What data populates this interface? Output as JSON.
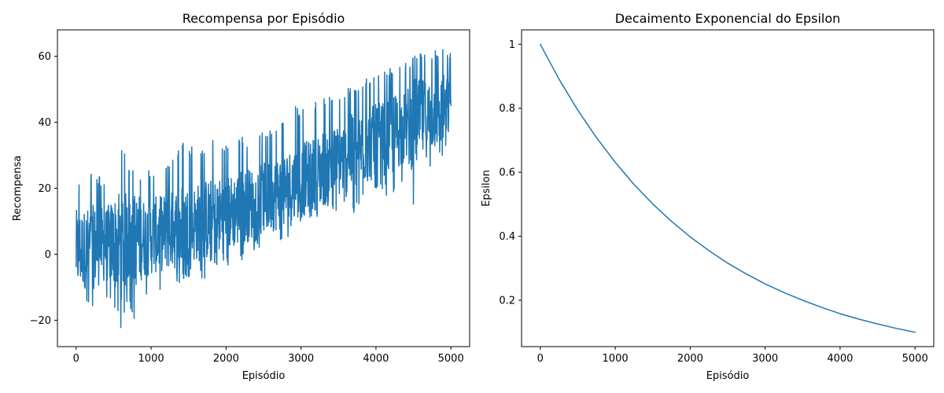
{
  "chart_data": [
    {
      "type": "line",
      "title": "Recompensa por Episódio",
      "xlabel": "Episódio",
      "ylabel": "Recompensa",
      "xlim": [
        -250,
        5250
      ],
      "ylim": [
        -28,
        68
      ],
      "xticks": [
        0,
        1000,
        2000,
        3000,
        4000,
        5000
      ],
      "yticks": [
        -20,
        0,
        20,
        40,
        60
      ],
      "ytick_labels": [
        "−20",
        "0",
        "20",
        "40",
        "60"
      ],
      "grid": false,
      "series": [
        {
          "color": "#1f77b4",
          "x": [
            0,
            100,
            200,
            300,
            400,
            500,
            600,
            700,
            800,
            900,
            1000,
            1100,
            1200,
            1300,
            1400,
            1500,
            1600,
            1700,
            1800,
            1900,
            2000,
            2100,
            2200,
            2300,
            2400,
            2500,
            2600,
            2700,
            2800,
            2900,
            3000,
            3100,
            3200,
            3300,
            3400,
            3500,
            3600,
            3700,
            3800,
            3900,
            4000,
            4100,
            4200,
            4300,
            4400,
            4500,
            4600,
            4700,
            4800,
            4900,
            5000
          ],
          "values": [
            1.0,
            1.5,
            2.0,
            2.5,
            3.0,
            3.5,
            4.0,
            4.2,
            4.5,
            5.0,
            5.5,
            6.0,
            6.8,
            7.5,
            8.0,
            8.8,
            9.5,
            10.0,
            10.8,
            11.5,
            12.2,
            13.0,
            14.0,
            15.0,
            15.8,
            16.5,
            17.5,
            18.5,
            19.5,
            20.8,
            22.0,
            23.5,
            24.5,
            26.0,
            27.0,
            28.2,
            29.5,
            30.5,
            32.0,
            33.0,
            34.0,
            35.0,
            36.2,
            37.2,
            38.5,
            39.5,
            40.8,
            41.5,
            42.5,
            44.0,
            45.0
          ],
          "band_low": [
            -18,
            -15,
            -17,
            -15,
            -14,
            -16,
            -23,
            -15,
            -22,
            -14,
            -12,
            -12,
            -10,
            -10,
            -9,
            -7,
            -6,
            -8,
            -4,
            -5,
            -4,
            -3,
            -2,
            -1,
            2,
            1,
            4,
            3,
            5,
            6,
            8,
            9,
            10,
            10,
            13,
            13,
            15,
            12,
            16,
            17,
            19,
            20,
            14,
            22,
            22,
            13,
            22,
            23,
            28,
            29,
            33
          ],
          "band_high": [
            22,
            23,
            25,
            24,
            22,
            28,
            35,
            26,
            25,
            25,
            26,
            25,
            28,
            29,
            35,
            33,
            32,
            33,
            35,
            33,
            33,
            34,
            36,
            35,
            36,
            37,
            38,
            40,
            42,
            45,
            44,
            45,
            46,
            48,
            48,
            49,
            50,
            52,
            52,
            54,
            56,
            56,
            57,
            58,
            58,
            60,
            62,
            61,
            62,
            64,
            61
          ]
        }
      ]
    },
    {
      "type": "line",
      "title": "Decaimento Exponencial do Epsilon",
      "xlabel": "Episódio",
      "ylabel": "Epsilon",
      "xlim": [
        -250,
        5250
      ],
      "ylim": [
        0.055,
        1.045
      ],
      "xticks": [
        0,
        1000,
        2000,
        3000,
        4000,
        5000
      ],
      "yticks": [
        0.2,
        0.4,
        0.6,
        0.8,
        1.0
      ],
      "grid": false,
      "series": [
        {
          "color": "#1f77b4",
          "x": [
            0,
            250,
            500,
            750,
            1000,
            1250,
            1500,
            1750,
            2000,
            2250,
            2500,
            2750,
            3000,
            3250,
            3500,
            3750,
            4000,
            4250,
            4500,
            4750,
            5000
          ],
          "values": [
            1.0,
            0.891,
            0.794,
            0.708,
            0.631,
            0.562,
            0.501,
            0.447,
            0.398,
            0.355,
            0.316,
            0.282,
            0.251,
            0.224,
            0.2,
            0.178,
            0.158,
            0.141,
            0.126,
            0.112,
            0.1
          ]
        }
      ]
    }
  ]
}
